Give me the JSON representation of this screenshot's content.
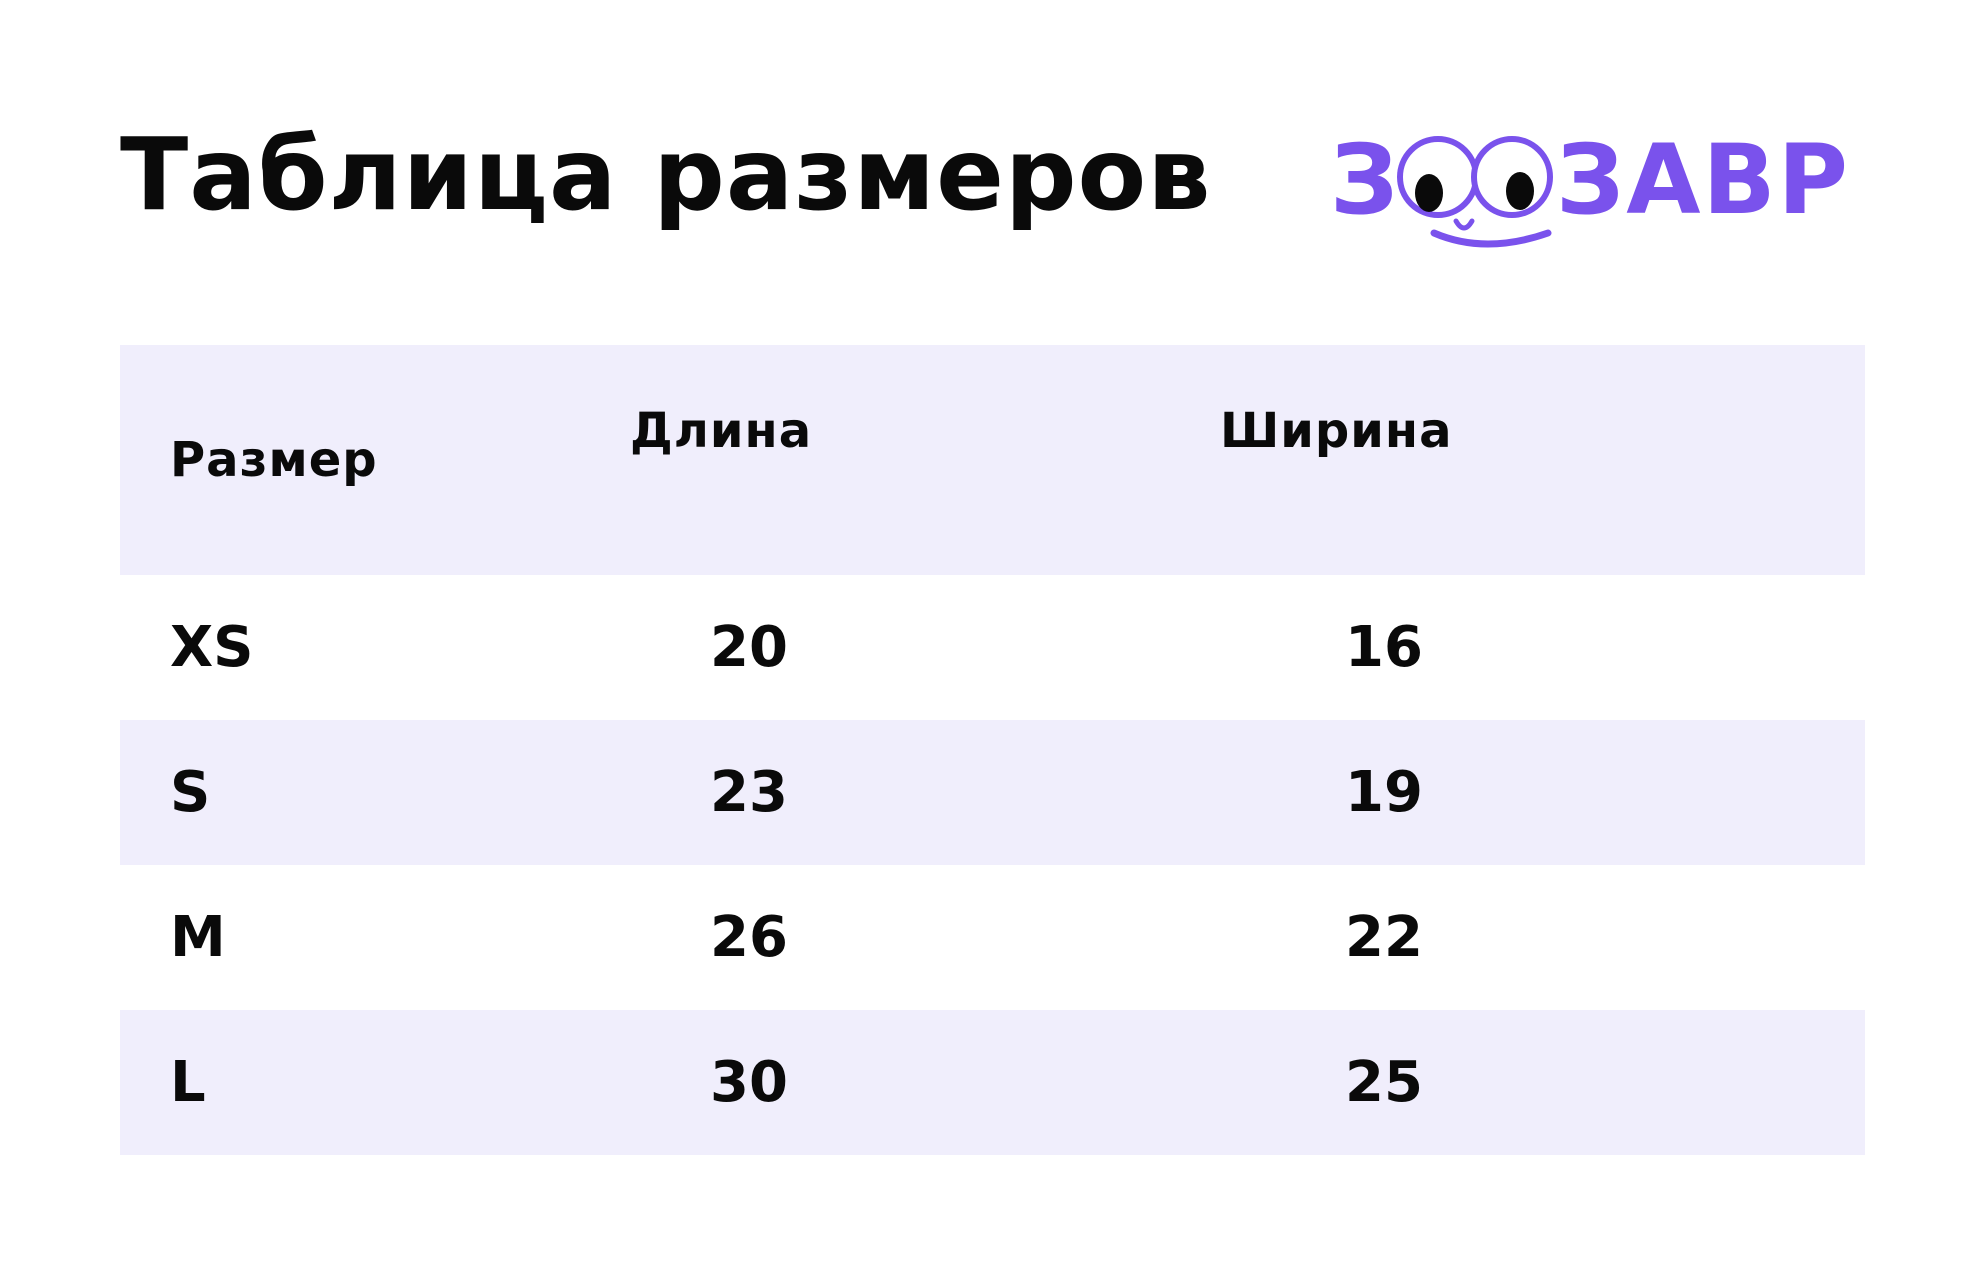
{
  "title": "Таблица размеров",
  "logo": {
    "text": "ЗООЗАВР",
    "brand_color": "#7a52ec",
    "pupil_color": "#0a0a0a"
  },
  "table": {
    "header_bg": "#f0eefc",
    "columns": [
      "Размер",
      "Длина",
      "Ширина"
    ],
    "rows": [
      {
        "size": "XS",
        "length": "20",
        "width": "16"
      },
      {
        "size": "S",
        "length": "23",
        "width": "19"
      },
      {
        "size": "M",
        "length": "26",
        "width": "22"
      },
      {
        "size": "L",
        "length": "30",
        "width": "25"
      }
    ]
  }
}
